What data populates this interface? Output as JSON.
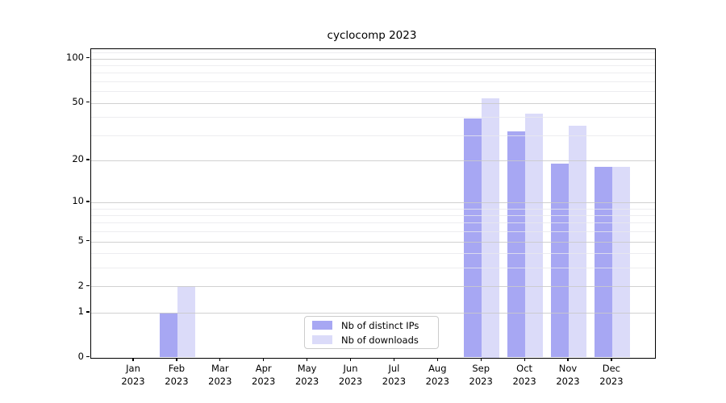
{
  "chart_data": {
    "type": "bar",
    "title": "cyclocomp 2023",
    "categories": [
      {
        "month": "Jan",
        "year": "2023"
      },
      {
        "month": "Feb",
        "year": "2023"
      },
      {
        "month": "Mar",
        "year": "2023"
      },
      {
        "month": "Apr",
        "year": "2023"
      },
      {
        "month": "May",
        "year": "2023"
      },
      {
        "month": "Jun",
        "year": "2023"
      },
      {
        "month": "Jul",
        "year": "2023"
      },
      {
        "month": "Aug",
        "year": "2023"
      },
      {
        "month": "Sep",
        "year": "2023"
      },
      {
        "month": "Oct",
        "year": "2023"
      },
      {
        "month": "Nov",
        "year": "2023"
      },
      {
        "month": "Dec",
        "year": "2023"
      }
    ],
    "series": [
      {
        "name": "Nb of distinct IPs",
        "color": "#a7a7f3",
        "values": [
          0,
          1,
          0,
          0,
          0,
          0,
          0,
          0,
          39,
          32,
          19,
          18
        ]
      },
      {
        "name": "Nb of downloads",
        "color": "#dbdbf9",
        "values": [
          0,
          2,
          0,
          0,
          0,
          0,
          0,
          0,
          54,
          42,
          35,
          18
        ]
      }
    ],
    "y_scale": "log1p",
    "y_ticks": [
      0,
      1,
      2,
      5,
      10,
      20,
      50,
      100
    ],
    "y_minor_gridlines": [
      3,
      4,
      6,
      7,
      8,
      9,
      30,
      40,
      60,
      70,
      80,
      90,
      110
    ],
    "ylim": [
      0,
      116
    ],
    "xlabel": "",
    "ylabel": "",
    "grid": true,
    "legend": {
      "position": "lower center"
    }
  },
  "style": {
    "background": "#ffffff",
    "axis_color": "#000000",
    "text_color": "#000000",
    "major_grid_color": "#c9c9c9",
    "minor_grid_color": "#e9e9ec",
    "legend_border_color": "#cccccc"
  }
}
